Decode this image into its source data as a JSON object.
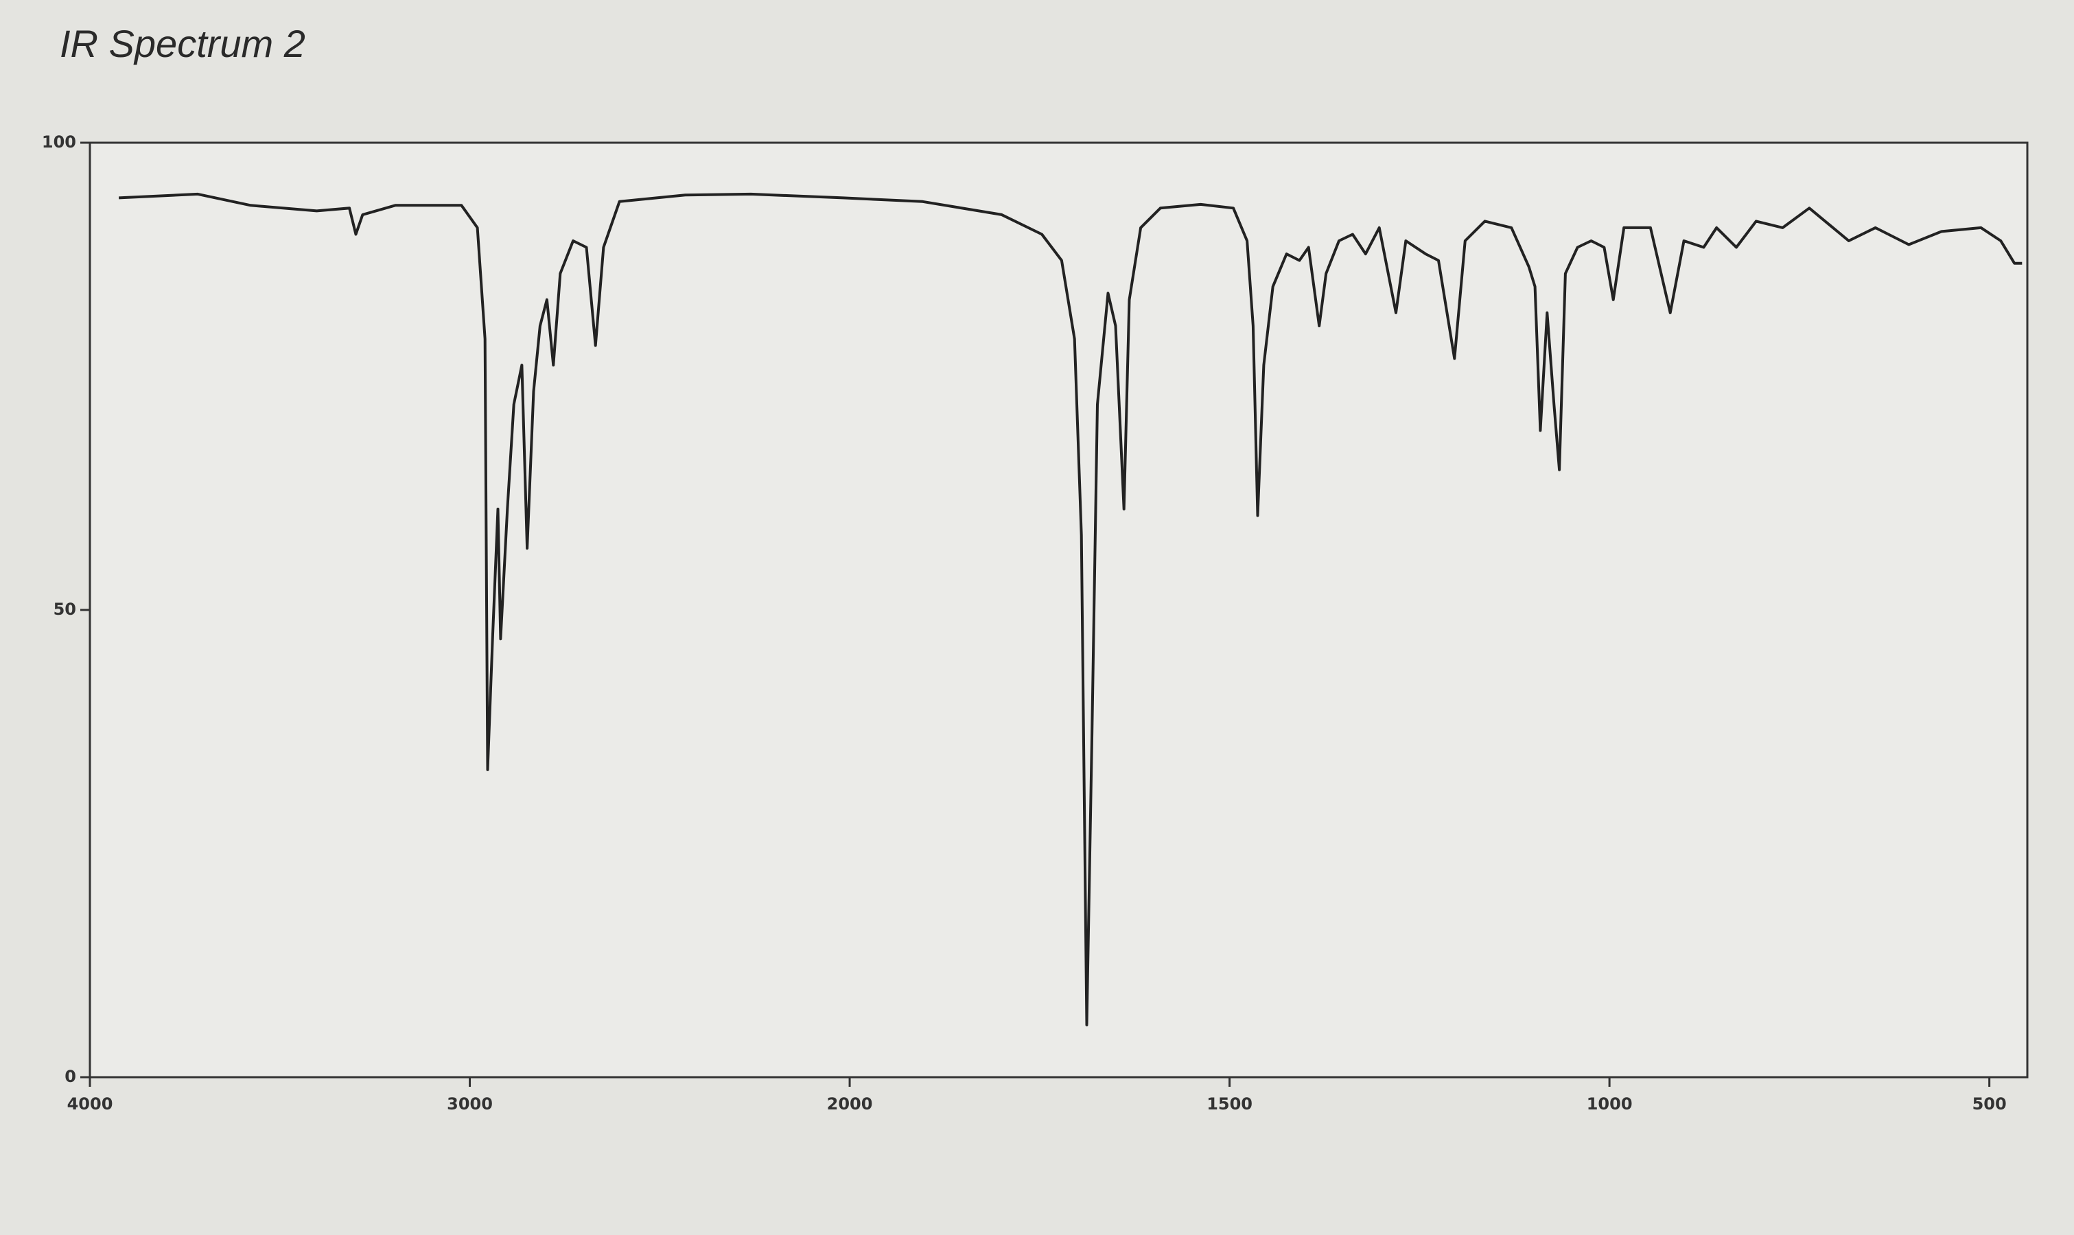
{
  "chart_data": {
    "type": "line",
    "title": "IR Spectrum 2",
    "x": [
      3924,
      3716,
      3577,
      3403,
      3317,
      3300,
      3282,
      3196,
      3022,
      2980,
      2960,
      2953,
      2940,
      2926,
      2919,
      2901,
      2884,
      2863,
      2849,
      2832,
      2815,
      2797,
      2780,
      2762,
      2728,
      2693,
      2669,
      2648,
      2606,
      2433,
      2260,
      2017,
      1904,
      1800,
      1747,
      1721,
      1704,
      1695,
      1688,
      1681,
      1674,
      1660,
      1650,
      1639,
      1632,
      1617,
      1591,
      1538,
      1495,
      1477,
      1469,
      1463,
      1455,
      1443,
      1425,
      1408,
      1396,
      1382,
      1373,
      1356,
      1338,
      1321,
      1303,
      1281,
      1268,
      1242,
      1225,
      1204,
      1190,
      1164,
      1129,
      1106,
      1098,
      1091,
      1082,
      1073,
      1066,
      1058,
      1042,
      1024,
      1007,
      995,
      981,
      946,
      920,
      902,
      876,
      859,
      833,
      807,
      772,
      737,
      685,
      650,
      606,
      563,
      511,
      485,
      467,
      457
    ],
    "values": [
      94.1,
      94.5,
      93.3,
      92.7,
      93,
      90.2,
      92.3,
      93.3,
      93.3,
      90.9,
      79,
      32.9,
      46.9,
      60.8,
      46.9,
      60.8,
      72,
      76.2,
      56.6,
      73.4,
      80.4,
      83.2,
      76.2,
      86,
      89.5,
      88.8,
      78.3,
      88.8,
      93.7,
      94.4,
      94.5,
      94.1,
      93.7,
      92.3,
      90.2,
      87.4,
      79,
      58,
      5.6,
      37.1,
      72,
      83.9,
      80.4,
      60.8,
      83.2,
      90.9,
      93,
      93.4,
      93,
      89.5,
      80.4,
      60.1,
      76.2,
      84.6,
      88.1,
      87.4,
      88.8,
      80.4,
      86,
      89.5,
      90.2,
      88.1,
      90.9,
      81.8,
      89.5,
      88.1,
      87.4,
      76.9,
      89.5,
      91.6,
      90.9,
      86.7,
      84.6,
      69.2,
      81.8,
      72,
      65,
      86,
      88.8,
      89.5,
      88.8,
      83.2,
      90.9,
      90.9,
      81.8,
      89.5,
      88.8,
      90.9,
      88.8,
      91.6,
      90.9,
      93,
      89.5,
      90.9,
      89.1,
      90.5,
      90.9,
      89.5,
      87.1,
      87.1
    ],
    "color": "#222222",
    "xlim": [
      4000,
      450
    ],
    "xticks": [
      4000,
      3000,
      2000,
      1500,
      1000,
      500
    ],
    "ylim": [
      0,
      100
    ],
    "yticks": [
      0,
      50,
      100
    ]
  }
}
